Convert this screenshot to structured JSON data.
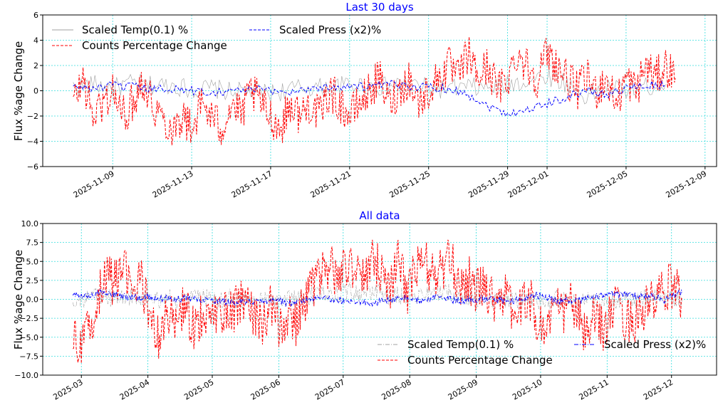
{
  "chart_data": [
    {
      "type": "line",
      "title": "Last 30 days",
      "xlabel": "",
      "ylabel": "Flux %age Change",
      "ylim": [
        -6,
        6
      ],
      "xlim": [
        "2025-11-05T11:00",
        "2025-12-09T14:00"
      ],
      "yticks": [
        6,
        4,
        2,
        0,
        -2,
        -4,
        -6
      ],
      "ytick_labels": [
        "6",
        "4",
        "2",
        "0",
        "−2",
        "−4",
        "−6"
      ],
      "xticks": [
        "2025-11-09",
        "2025-11-13",
        "2025-11-17",
        "2025-11-21",
        "2025-11-25",
        "2025-11-29",
        "2025-12-01",
        "2025-12-05",
        "2025-12-09"
      ],
      "grid": true,
      "legend_position": "top-left",
      "legend_columns": 2,
      "series": [
        {
          "name": "Scaled Temp(0.1) %",
          "color": "#a0a0a0",
          "dash": "solid",
          "start": "2025-11-07",
          "step_days": 1,
          "jitter": 0.8,
          "values": [
            0.3,
            0.5,
            0.2,
            0.6,
            0.4,
            0.5,
            0.1,
            0.2,
            -0.1,
            0,
            -0.2,
            0.1,
            0.3,
            0.2,
            0.5,
            0.4,
            0.3,
            0.6,
            0.2,
            0.1,
            0.3,
            0.2,
            0.5,
            0.8,
            1.2,
            0.6,
            -0.5,
            0.2,
            0.1,
            0.3,
            0.5
          ]
        },
        {
          "name": "Counts Percentage Change",
          "color": "#ff0000",
          "dash": "dashed",
          "start": "2025-11-07",
          "step_days": 0.5,
          "jitter": 1.6,
          "values": [
            -1,
            1,
            -2,
            -1,
            0,
            -2,
            -1,
            1,
            -1,
            -2,
            -3,
            -2,
            -3,
            -1,
            -2,
            -3,
            -1,
            -2,
            0,
            -1,
            -2,
            -3,
            -1,
            -2,
            -1,
            -2,
            0,
            -1,
            -2,
            -1,
            0,
            1,
            -1,
            0,
            1,
            -1,
            0,
            1,
            2,
            1,
            3,
            1,
            2,
            0,
            1,
            3,
            2,
            1,
            3,
            2,
            1,
            0,
            1,
            0,
            1,
            -1,
            1,
            0,
            2,
            1,
            2,
            1
          ]
        },
        {
          "name": "Scaled Press (x2)%",
          "color": "#0000ff",
          "dash": "dashed",
          "start": "2025-11-07",
          "step_days": 1,
          "jitter": 0.35,
          "values": [
            0.3,
            0.2,
            0.4,
            0.3,
            0.1,
            0.2,
            0,
            -0.1,
            0,
            0.1,
            0,
            -0.1,
            0.2,
            0.3,
            0.4,
            0.3,
            0.5,
            0.4,
            0.3,
            0.2,
            -0.3,
            -1.2,
            -1.8,
            -1.5,
            -1,
            -0.5,
            0,
            -0.3,
            0.2,
            0.4,
            0.5
          ]
        }
      ]
    },
    {
      "type": "line",
      "title": "All data",
      "xlabel": "",
      "ylabel": "Flux %age Change",
      "ylim": [
        -10,
        10
      ],
      "xlim": [
        "2025-02-11",
        "2025-12-22"
      ],
      "yticks": [
        10,
        7.5,
        5,
        2.5,
        0,
        -2.5,
        -5,
        -7.5,
        -10
      ],
      "ytick_labels": [
        "10.0",
        "7.5",
        "5.0",
        "2.5",
        "0.0",
        "−2.5",
        "−5.0",
        "−7.5",
        "−10.0"
      ],
      "xticks": [
        "2025-03",
        "2025-04",
        "2025-05",
        "2025-06",
        "2025-07",
        "2025-08",
        "2025-09",
        "2025-10",
        "2025-11",
        "2025-12"
      ],
      "grid": true,
      "legend_position": "lower-right",
      "legend_columns": 2,
      "series": [
        {
          "name": "Scaled Temp(0.1) %",
          "color": "#a0a0a0",
          "dash": "dashdot",
          "start": "2025-02-25",
          "step_days": 4,
          "jitter": 1.2,
          "values": [
            0,
            -0.3,
            0.2,
            0.5,
            0.3,
            0,
            0.2,
            0.4,
            0.1,
            -0.2,
            0,
            0.3,
            -0.1,
            0.2,
            0,
            0.4,
            0.1,
            -0.3,
            0.2,
            0,
            -0.2,
            0.1,
            0,
            -0.3,
            -0.2,
            0.1,
            0,
            0.3,
            0.5,
            0.8,
            1,
            0.6,
            1.2,
            0.9,
            0.7,
            1,
            0.8,
            0.4,
            0.6,
            0.3,
            0.5,
            0.9,
            0.6,
            0.8,
            1,
            0.4,
            0.3,
            0.1,
            0.2,
            -0.2,
            0,
            -0.3,
            -0.1,
            0.2,
            -0.4,
            -0.2,
            0,
            0.1,
            -0.3,
            -0.5,
            -0.2,
            -0.4,
            0,
            -0.2,
            0.1,
            -0.3,
            0,
            0.2,
            0.1,
            0.3,
            0.2,
            0.1
          ]
        },
        {
          "name": "Counts Percentage Change",
          "color": "#ff0000",
          "dash": "dashed",
          "start": "2025-02-25",
          "step_days": 4,
          "jitter": 3.2,
          "values": [
            -5,
            -6,
            -4,
            1,
            3,
            2,
            4,
            1,
            3,
            -3,
            -5,
            -2,
            -3,
            -1,
            -4,
            -2,
            -3,
            -1,
            -2,
            -1,
            0,
            -2,
            -3,
            -1,
            -4,
            -2,
            -3,
            -1,
            2,
            3,
            4,
            3,
            5,
            4,
            3,
            5,
            4,
            2,
            5,
            1,
            4,
            5,
            3,
            4,
            5,
            2,
            3,
            1,
            2,
            0,
            1,
            -1,
            -2,
            1,
            -3,
            -4,
            -1,
            -2,
            0,
            -3,
            -5,
            -2,
            -4,
            -1,
            -2,
            -3,
            -2,
            -1,
            0,
            1,
            2,
            0
          ]
        },
        {
          "name": "Scaled Press (x2)%",
          "color": "#0000ff",
          "dash": "dashdot",
          "start": "2025-02-25",
          "step_days": 4,
          "jitter": 0.45,
          "values": [
            0.8,
            0.4,
            0.5,
            0.8,
            1,
            0.6,
            0.4,
            0.3,
            0.2,
            0.3,
            0.1,
            0.2,
            0,
            0.1,
            0.2,
            0,
            -0.2,
            -0.3,
            -0.4,
            -0.5,
            -0.3,
            -0.4,
            -0.2,
            -0.3,
            -0.1,
            -0.6,
            -0.3,
            0,
            0.2,
            0.1,
            0,
            -0.2,
            -0.1,
            -0.4,
            -0.3,
            -0.5,
            -0.2,
            -0.1,
            0,
            0.1,
            -0.2,
            0,
            0.2,
            0.1,
            0,
            -0.2,
            -0.1,
            0,
            0.1,
            0,
            -0.2,
            -0.3,
            0,
            0.3,
            0.5,
            0.4,
            0,
            -0.3,
            -0.1,
            -0.2,
            0.2,
            0.4,
            0.6,
            0.7,
            0.5,
            0.6,
            0.5,
            0.4,
            0.3,
            -0.1,
            0.6,
            0.9
          ]
        }
      ]
    }
  ]
}
